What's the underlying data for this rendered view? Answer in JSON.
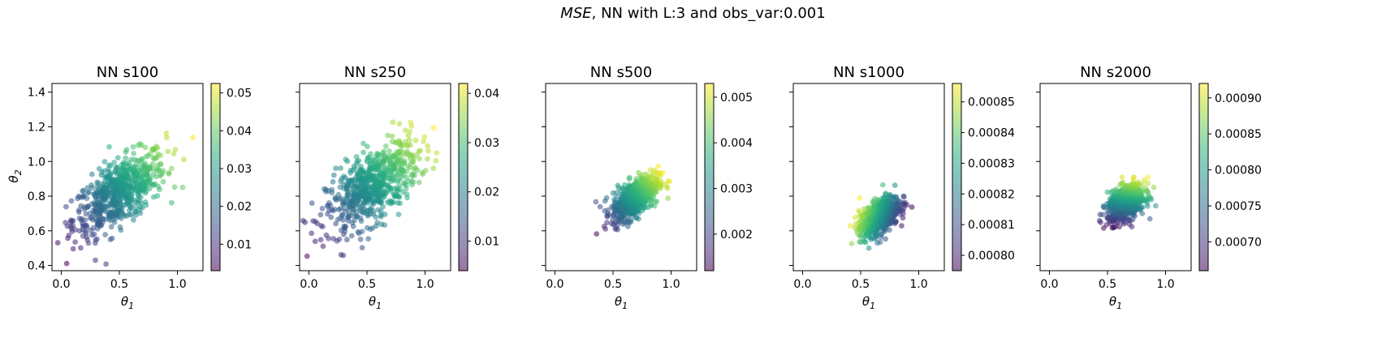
{
  "figure": {
    "title_italic": "MSE",
    "title_rest": ", NN with L:3 and obs_var:0.001"
  },
  "chart_data": [
    {
      "type": "scatter",
      "title": "NN s100",
      "xlabel": "θ1",
      "ylabel": "θ2",
      "xlim": [
        -0.08,
        1.22
      ],
      "ylim": [
        0.37,
        1.45
      ],
      "xticks": [
        0.0,
        0.5,
        1.0
      ],
      "xtick_labels": [
        "0.0",
        "0.5",
        "1.0"
      ],
      "yticks": [
        0.4,
        0.6,
        0.8,
        1.0,
        1.2,
        1.4
      ],
      "ytick_labels": [
        "0.4",
        "0.6",
        "0.8",
        "1.0",
        "1.2",
        "1.4"
      ],
      "colorbar": {
        "range": [
          0.003,
          0.0525
        ],
        "ticks": [
          0.01,
          0.02,
          0.03,
          0.04,
          0.05
        ],
        "tick_labels": [
          "0.01",
          "0.02",
          "0.03",
          "0.04",
          "0.05"
        ]
      },
      "cloud": {
        "center": [
          0.5,
          0.82
        ],
        "spread": [
          0.2,
          0.12
        ],
        "corr": 0.65,
        "color_dir": [
          0.78,
          0.62
        ]
      }
    },
    {
      "type": "scatter",
      "title": "NN s250",
      "xlabel": "θ1",
      "ylabel": "",
      "xlim": [
        -0.08,
        1.22
      ],
      "ylim": [
        0.37,
        1.45
      ],
      "xticks": [
        0.0,
        0.5,
        1.0
      ],
      "xtick_labels": [
        "0.0",
        "0.5",
        "1.0"
      ],
      "yticks": [
        0.4,
        0.6,
        0.8,
        1.0,
        1.2,
        1.4
      ],
      "ytick_labels": [],
      "colorbar": {
        "range": [
          0.004,
          0.042
        ],
        "ticks": [
          0.01,
          0.02,
          0.03,
          0.04
        ],
        "tick_labels": [
          "0.01",
          "0.02",
          "0.03",
          "0.04"
        ]
      },
      "cloud": {
        "center": [
          0.55,
          0.86
        ],
        "spread": [
          0.2,
          0.13
        ],
        "corr": 0.62,
        "color_dir": [
          0.72,
          0.69
        ]
      }
    },
    {
      "type": "scatter",
      "title": "NN s500",
      "xlabel": "θ1",
      "ylabel": "",
      "xlim": [
        -0.08,
        1.22
      ],
      "ylim": [
        0.37,
        1.45
      ],
      "xticks": [
        0.0,
        0.5,
        1.0
      ],
      "xtick_labels": [
        "0.0",
        "0.5",
        "1.0"
      ],
      "yticks": [
        0.4,
        0.6,
        0.8,
        1.0,
        1.2,
        1.4
      ],
      "ytick_labels": [],
      "colorbar": {
        "range": [
          0.0012,
          0.0053
        ],
        "ticks": [
          0.002,
          0.003,
          0.004,
          0.005
        ],
        "tick_labels": [
          "0.002",
          "0.003",
          "0.004",
          "0.005"
        ]
      },
      "cloud": {
        "center": [
          0.69,
          0.79
        ],
        "spread": [
          0.1,
          0.065
        ],
        "corr": 0.6,
        "color_dir": [
          0.72,
          0.69
        ]
      }
    },
    {
      "type": "scatter",
      "title": "NN s1000",
      "xlabel": "θ1",
      "ylabel": "",
      "xlim": [
        -0.08,
        1.22
      ],
      "ylim": [
        0.37,
        1.45
      ],
      "xticks": [
        0.0,
        0.5,
        1.0
      ],
      "xtick_labels": [
        "0.0",
        "0.5",
        "1.0"
      ],
      "yticks": [
        0.4,
        0.6,
        0.8,
        1.0,
        1.2,
        1.4
      ],
      "ytick_labels": [],
      "colorbar": {
        "range": [
          0.000795,
          0.000856
        ],
        "ticks": [
          0.0008,
          0.00081,
          0.00082,
          0.00083,
          0.00084,
          0.00085
        ],
        "tick_labels": [
          "0.00080",
          "0.00081",
          "0.00082",
          "0.00083",
          "0.00084",
          "0.00085"
        ]
      },
      "cloud": {
        "center": [
          0.66,
          0.68
        ],
        "spread": [
          0.085,
          0.058
        ],
        "corr": 0.55,
        "color_dir": [
          -0.93,
          0.37
        ]
      }
    },
    {
      "type": "scatter",
      "title": "NN s2000",
      "xlabel": "θ1",
      "ylabel": "",
      "xlim": [
        -0.08,
        1.22
      ],
      "ylim": [
        0.37,
        1.45
      ],
      "xticks": [
        0.0,
        0.5,
        1.0
      ],
      "xtick_labels": [
        "0.0",
        "0.5",
        "1.0"
      ],
      "yticks": [
        0.4,
        0.6,
        0.8,
        1.0,
        1.2,
        1.4
      ],
      "ytick_labels": [],
      "colorbar": {
        "range": [
          0.00066,
          0.00092
        ],
        "ticks": [
          0.0007,
          0.00075,
          0.0008,
          0.00085,
          0.0009
        ],
        "tick_labels": [
          "0.00070",
          "0.00075",
          "0.00080",
          "0.00085",
          "0.00090"
        ]
      },
      "cloud": {
        "center": [
          0.66,
          0.76
        ],
        "spread": [
          0.08,
          0.052
        ],
        "corr": 0.4,
        "color_dir": [
          0.15,
          0.99
        ]
      }
    }
  ]
}
